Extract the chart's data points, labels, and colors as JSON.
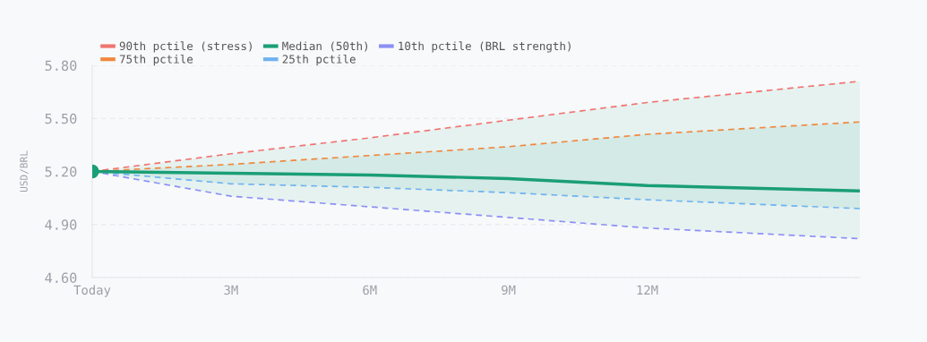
{
  "chart_data": {
    "type": "line",
    "ylabel": "USD/BRL",
    "x": [
      0,
      3,
      6,
      9,
      12,
      16.6
    ],
    "xlim": [
      0,
      16.6
    ],
    "xticks": [
      {
        "value": 0,
        "label": "Today"
      },
      {
        "value": 3,
        "label": "3M"
      },
      {
        "value": 6,
        "label": "6M"
      },
      {
        "value": 9,
        "label": "9M"
      },
      {
        "value": 12,
        "label": "12M"
      }
    ],
    "ylim": [
      4.6,
      5.8
    ],
    "yticks": [
      {
        "value": 4.6,
        "label": "4.60"
      },
      {
        "value": 4.9,
        "label": "4.90"
      },
      {
        "value": 5.2,
        "label": "5.20"
      },
      {
        "value": 5.5,
        "label": "5.50"
      },
      {
        "value": 5.8,
        "label": "5.80"
      }
    ],
    "grid": "y",
    "legend": "top left",
    "series": [
      {
        "name": "90th pctile (stress)",
        "color": "#f07470",
        "line_style": "dashed",
        "values": [
          5.2,
          5.3,
          5.39,
          5.49,
          5.59,
          5.71
        ],
        "lower": [
          5.2,
          5.06,
          5.0,
          4.94,
          4.88,
          4.82
        ],
        "upper": [
          5.2,
          5.3,
          5.39,
          5.49,
          5.59,
          5.71
        ]
      },
      {
        "name": "75th pctile",
        "color": "#f0883e",
        "line_style": "dashed",
        "values": [
          5.2,
          5.24,
          5.29,
          5.34,
          5.41,
          5.48
        ]
      },
      {
        "name": "Median (50th)",
        "color": "#1a9e75",
        "line_style": "solid",
        "values": [
          5.2,
          5.19,
          5.18,
          5.16,
          5.12,
          5.09
        ],
        "lower": [
          5.2,
          5.13,
          5.11,
          5.08,
          5.04,
          4.99
        ],
        "upper": [
          5.2,
          5.24,
          5.29,
          5.34,
          5.41,
          5.48
        ]
      },
      {
        "name": "25th pctile",
        "color": "#6fb3f0",
        "line_style": "dashed",
        "values": [
          5.2,
          5.13,
          5.11,
          5.08,
          5.04,
          4.99
        ]
      },
      {
        "name": "10th pctile (BRL strength)",
        "color": "#8b8ff5",
        "line_style": "dashed",
        "values": [
          5.2,
          5.06,
          5.0,
          4.94,
          4.88,
          4.82
        ]
      },
      {
        "type": "scatter",
        "color": "#1a9e75",
        "marker": "circle",
        "x": [
          0
        ],
        "values": [
          5.2
        ]
      }
    ]
  }
}
